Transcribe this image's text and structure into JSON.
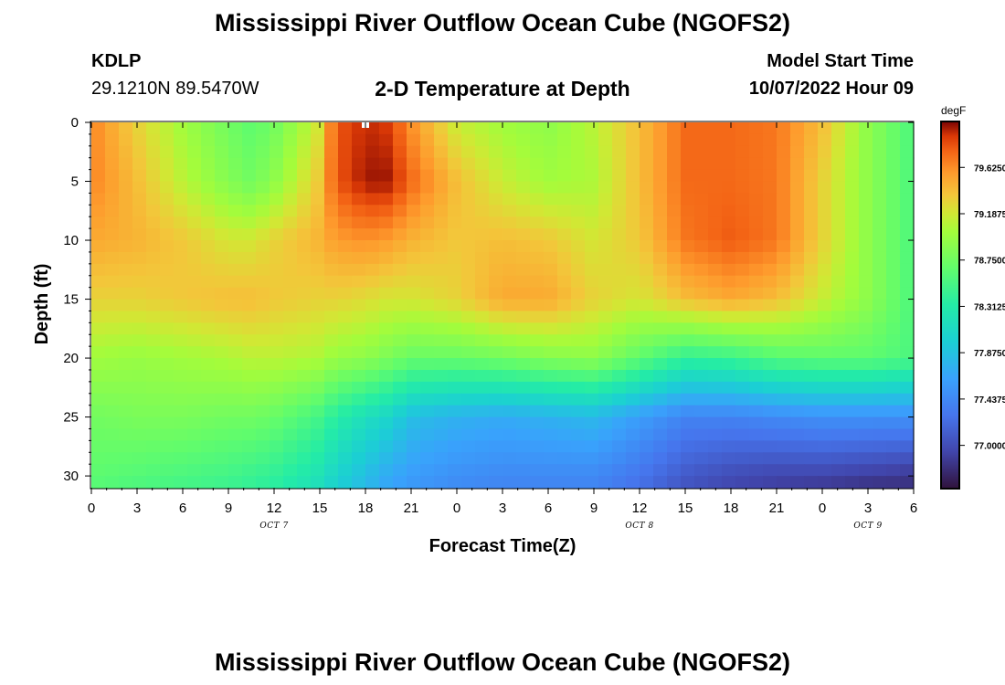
{
  "header": {
    "title": "Mississippi River Outflow Ocean Cube (NGOFS2)",
    "station_id": "KDLP",
    "station_coords": "29.1210N  89.5470W",
    "plot_title": "2-D Temperature at Depth",
    "model_start_label": "Model Start Time",
    "model_start_value": "10/07/2022 Hour 09"
  },
  "footer": {
    "title": "Mississippi River Outflow Ocean Cube (NGOFS2)"
  },
  "chart_data": {
    "type": "heatmap",
    "xlabel": "Forecast Time(Z)",
    "ylabel": "Depth (ft)",
    "x_tick_labels": [
      "0",
      "3",
      "6",
      "9",
      "12",
      "15",
      "18",
      "21",
      "0",
      "3",
      "6",
      "9",
      "12",
      "15",
      "18",
      "21",
      "0",
      "3",
      "6"
    ],
    "x_range_hours": [
      0,
      54
    ],
    "date_labels": [
      {
        "text": "OCT 7",
        "hour": 12
      },
      {
        "text": "OCT 8",
        "hour": 36
      },
      {
        "text": "OCT 9",
        "hour": 51
      }
    ],
    "y_tick_labels": [
      "0",
      "5",
      "10",
      "15",
      "20",
      "25",
      "30"
    ],
    "y_range": [
      0,
      31
    ],
    "y_inverted": true,
    "colorbar": {
      "unit": "degF",
      "tick_labels": [
        "79.6250",
        "79.1875",
        "78.7500",
        "78.3125",
        "77.8750",
        "77.4375",
        "77.0000"
      ],
      "range": [
        76.6,
        80.05
      ],
      "colormap": "turbo"
    },
    "estimated_temperature_degF": {
      "time_hours": [
        0,
        3,
        6,
        9,
        10.5,
        12,
        15,
        16,
        18,
        19.5,
        21,
        24,
        27,
        30,
        33,
        36,
        39,
        42,
        45,
        48,
        51,
        54
      ],
      "depth_ft": [
        0,
        5,
        10,
        15,
        20,
        25,
        30,
        31
      ],
      "values": [
        [
          79.65,
          79.3,
          79.0,
          78.75,
          78.65,
          78.75,
          79.2,
          79.8,
          79.95,
          79.9,
          79.6,
          79.15,
          79.0,
          78.9,
          79.1,
          79.4,
          79.75,
          79.75,
          79.7,
          79.4,
          78.9,
          78.55
        ],
        [
          79.65,
          79.4,
          79.1,
          78.85,
          78.75,
          78.9,
          79.35,
          79.8,
          80.0,
          80.0,
          79.75,
          79.4,
          79.15,
          79.0,
          79.05,
          79.4,
          79.75,
          79.75,
          79.7,
          79.3,
          78.9,
          78.55
        ],
        [
          79.5,
          79.45,
          79.35,
          79.2,
          79.2,
          79.3,
          79.45,
          79.55,
          79.6,
          79.55,
          79.45,
          79.35,
          79.4,
          79.35,
          79.2,
          79.35,
          79.7,
          79.8,
          79.7,
          79.3,
          78.9,
          78.55
        ],
        [
          79.3,
          79.3,
          79.35,
          79.4,
          79.4,
          79.35,
          79.3,
          79.3,
          79.25,
          79.2,
          79.2,
          79.3,
          79.5,
          79.5,
          79.3,
          79.2,
          79.4,
          79.5,
          79.4,
          79.15,
          78.9,
          78.55
        ],
        [
          79.0,
          78.95,
          79.0,
          79.05,
          79.1,
          79.1,
          79.05,
          78.95,
          78.9,
          78.8,
          78.7,
          78.7,
          78.75,
          78.85,
          78.9,
          78.65,
          78.4,
          78.45,
          78.6,
          78.65,
          78.65,
          78.55
        ],
        [
          78.75,
          78.8,
          78.8,
          78.75,
          78.75,
          78.7,
          78.5,
          78.35,
          78.15,
          78.05,
          77.85,
          77.75,
          77.7,
          77.75,
          77.8,
          77.6,
          77.4,
          77.4,
          77.45,
          77.5,
          77.5,
          77.5
        ],
        [
          78.65,
          78.6,
          78.55,
          78.5,
          78.45,
          78.4,
          78.2,
          78.05,
          77.85,
          77.7,
          77.6,
          77.5,
          77.45,
          77.45,
          77.45,
          77.3,
          77.1,
          77.0,
          76.95,
          76.95,
          76.9,
          76.85
        ],
        [
          78.6,
          78.55,
          78.5,
          78.45,
          78.4,
          78.35,
          78.15,
          78.0,
          77.8,
          77.65,
          77.55,
          77.45,
          77.4,
          77.4,
          77.4,
          77.25,
          77.05,
          76.95,
          76.9,
          76.85,
          76.8,
          76.8
        ]
      ]
    }
  }
}
